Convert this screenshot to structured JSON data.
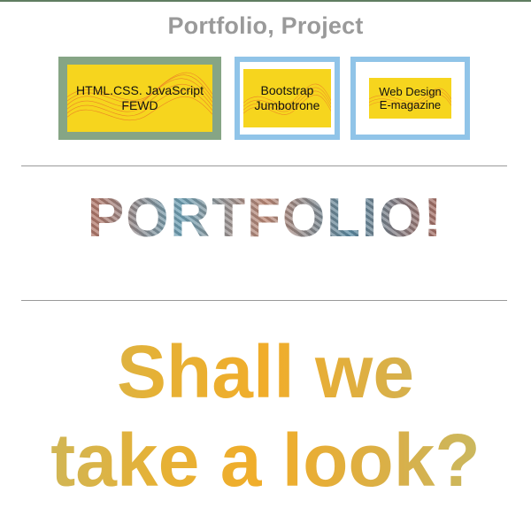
{
  "page": {
    "title": "Portfolio, Project"
  },
  "projects": [
    {
      "label": "HTML.CSS. JavaScript\nFEWD",
      "border_color": "#86a585"
    },
    {
      "label": "Bootstrap\nJumbotrone",
      "border_color": "#90c4e8"
    },
    {
      "label": "Web Design\nE-magazine",
      "border_color": "#90c4e8"
    }
  ],
  "headline": "PORTFOLIO!",
  "tagline": {
    "line1": "Shall we",
    "line2": "take a look?"
  },
  "colors": {
    "thumb_background": "#f6d51e",
    "wave_color": "#e8612a",
    "tagline_accent": "#f1ad2a",
    "title_gray": "#9a9a9a"
  }
}
